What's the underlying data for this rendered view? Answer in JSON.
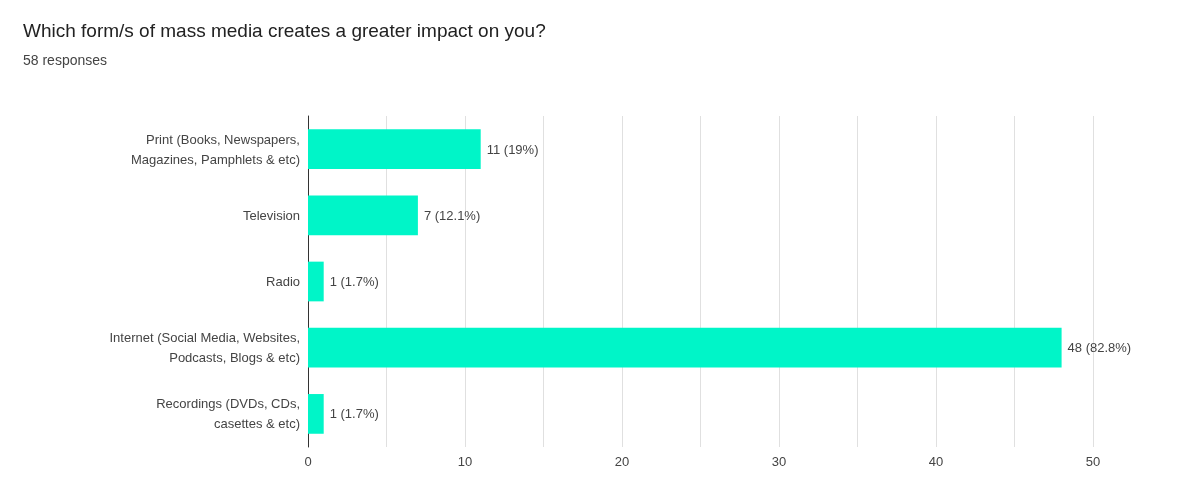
{
  "chart_data": {
    "type": "bar",
    "orientation": "horizontal",
    "title": "Which form/s of mass media creates a greater impact on you?",
    "subtitle": "58 responses",
    "categories": [
      "Print (Books, Newspapers,\nMagazines, Pamphlets & etc)",
      "Television",
      "Radio",
      "Internet (Social Media, Websites,\nPodcasts, Blogs & etc)",
      "Recordings (DVDs, CDs,\ncasettes & etc)"
    ],
    "values": [
      11,
      7,
      1,
      48,
      1
    ],
    "value_labels": [
      "11 (19%)",
      "7 (12.1%)",
      "1 (1.7%)",
      "48 (82.8%)",
      "1 (1.7%)"
    ],
    "color": "#00f5c8",
    "xlim": [
      0,
      50
    ],
    "xticks": [
      0,
      {
        "value": 5,
        "label": null
      },
      10,
      {
        "value": 15,
        "label": null
      },
      20,
      {
        "value": 25,
        "label": null
      },
      30,
      {
        "value": 35,
        "label": null
      },
      40,
      {
        "value": 45,
        "label": null
      },
      50
    ],
    "grid": "x"
  }
}
